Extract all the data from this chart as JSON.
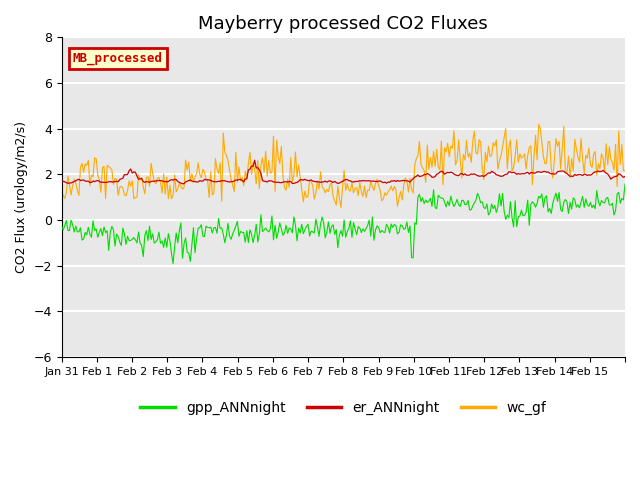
{
  "title": "Mayberry processed CO2 Fluxes",
  "ylabel": "CO2 Flux (urology/m2/s)",
  "ylim": [
    -6,
    8
  ],
  "yticks": [
    -6,
    -4,
    -2,
    0,
    2,
    4,
    6,
    8
  ],
  "bg_color": "#e8e8e8",
  "grid_color": "white",
  "line_green": "#00dd00",
  "line_red": "#cc0000",
  "line_orange": "#ffaa00",
  "legend_label": "MB_processed",
  "legend_bg": "#ffffcc",
  "legend_border": "#cc0000",
  "series_labels": [
    "gpp_ANNnight",
    "er_ANNnight",
    "wc_gf"
  ],
  "n_points": 360,
  "xtick_dates": [
    "Jan 31",
    "Feb 1",
    "Feb 2",
    "Feb 3",
    "Feb 4",
    "Feb 5",
    "Feb 6",
    "Feb 7",
    "Feb 8",
    "Feb 9",
    "Feb 10",
    "Feb 11",
    "Feb 12",
    "Feb 13",
    "Feb 14",
    "Feb 15"
  ]
}
